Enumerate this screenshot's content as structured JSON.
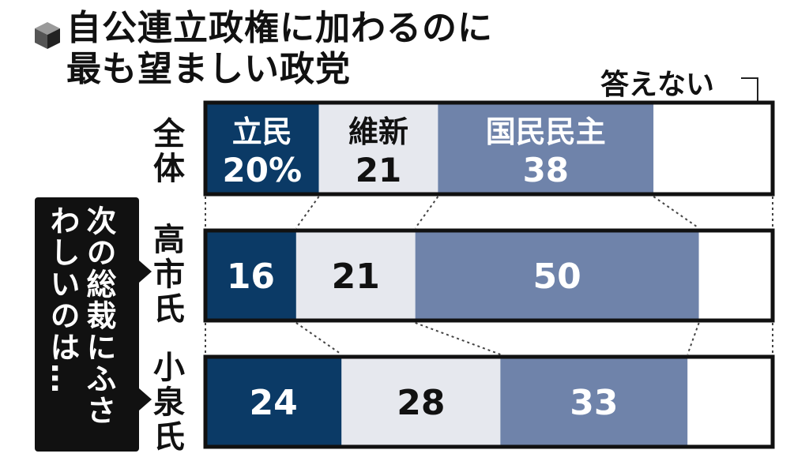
{
  "title_lines": [
    "自公連立政権に加わるのに",
    "最も望ましい政党"
  ],
  "side_label": "次の総裁にふさわしいのは…",
  "side_label_lines": [
    "次の総裁にふさ",
    "わしいのは…"
  ],
  "colors": {
    "立民": "#0b3a66",
    "維新": "#e6e8ee",
    "国民民主": "#6f83aa",
    "答えない": "#ffffff",
    "frame": "#111111"
  },
  "chart_data": {
    "type": "bar",
    "orientation": "horizontal-stacked-100",
    "title": "自公連立政権に加わるのに最も望ましい政党",
    "categories": [
      "全体",
      "高市氏",
      "小泉氏"
    ],
    "series": [
      {
        "name": "立民",
        "values": [
          20,
          16,
          24
        ],
        "labels": [
          "20%",
          "16",
          "24"
        ]
      },
      {
        "name": "維新",
        "values": [
          21,
          21,
          28
        ],
        "labels": [
          "21",
          "21",
          "28"
        ]
      },
      {
        "name": "国民民主",
        "values": [
          38,
          50,
          33
        ],
        "labels": [
          "38",
          "50",
          "33"
        ]
      },
      {
        "name": "答えない",
        "values": [
          21,
          13,
          15
        ],
        "labels": [
          "",
          "",
          ""
        ]
      }
    ],
    "legend_note": "答えない",
    "ylim": [
      0,
      100
    ]
  }
}
